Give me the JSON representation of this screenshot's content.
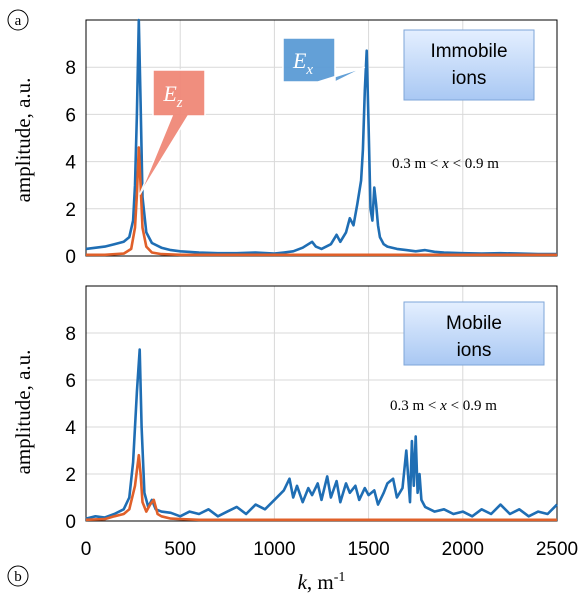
{
  "chart_data": [
    {
      "type": "line",
      "panel": "a",
      "xlabel": "",
      "ylabel": "amplitude, a.u.",
      "xlim": [
        0,
        2500
      ],
      "ylim": [
        0,
        10
      ],
      "yticks": [
        0,
        2,
        4,
        6,
        8
      ],
      "grid": true,
      "legend_box": [
        "Immobile",
        "ions"
      ],
      "range_text": {
        "a": "0.3 m < ",
        "b": "x",
        "c": " < 0.9 m"
      },
      "series": [
        {
          "name": "E_x",
          "color": "#1f6eb4",
          "x": [
            0,
            100,
            150,
            200,
            230,
            250,
            260,
            270,
            280,
            290,
            300,
            320,
            350,
            400,
            450,
            500,
            600,
            700,
            800,
            900,
            1000,
            1050,
            1100,
            1150,
            1200,
            1220,
            1250,
            1300,
            1330,
            1350,
            1380,
            1400,
            1420,
            1440,
            1460,
            1470,
            1480,
            1490,
            1500,
            1510,
            1520,
            1530,
            1540,
            1550,
            1560,
            1580,
            1600,
            1650,
            1700,
            1750,
            1800,
            1850,
            1900,
            2000,
            2100,
            2200,
            2300,
            2400,
            2500
          ],
          "y": [
            0.3,
            0.4,
            0.5,
            0.6,
            0.8,
            1.5,
            3.0,
            6.0,
            10.0,
            6.5,
            2.5,
            1.0,
            0.55,
            0.35,
            0.25,
            0.2,
            0.15,
            0.12,
            0.12,
            0.15,
            0.1,
            0.15,
            0.2,
            0.35,
            0.6,
            0.4,
            0.3,
            0.5,
            0.9,
            0.6,
            1.0,
            1.6,
            1.3,
            2.2,
            3.2,
            4.5,
            7.0,
            8.7,
            5.5,
            2.0,
            1.5,
            2.9,
            2.2,
            1.3,
            0.8,
            0.5,
            0.4,
            0.3,
            0.25,
            0.2,
            0.25,
            0.18,
            0.15,
            0.12,
            0.1,
            0.12,
            0.1,
            0.08,
            0.08
          ]
        },
        {
          "name": "E_z",
          "color": "#e0602a",
          "x": [
            0,
            100,
            200,
            240,
            260,
            270,
            280,
            290,
            300,
            320,
            350,
            400,
            500,
            700,
            1000,
            1500,
            2000,
            2500
          ],
          "y": [
            0.05,
            0.05,
            0.1,
            0.3,
            1.2,
            2.6,
            4.6,
            3.0,
            1.2,
            0.4,
            0.15,
            0.08,
            0.05,
            0.05,
            0.05,
            0.05,
            0.05,
            0.05
          ]
        }
      ],
      "annotations": [
        {
          "text_main": "E",
          "text_sub": "x",
          "color": "#5b9bd5",
          "x": 1480,
          "y": 8.0
        },
        {
          "text_main": "E",
          "text_sub": "z",
          "color": "#f08878",
          "x": 285,
          "y": 2.6
        }
      ]
    },
    {
      "type": "line",
      "panel": "b",
      "xlabel": "k, m-1",
      "ylabel": "amplitude, a.u.",
      "xlim": [
        0,
        2500
      ],
      "ylim": [
        0,
        10
      ],
      "xticks": [
        0,
        500,
        1000,
        1500,
        2000,
        2500
      ],
      "yticks": [
        0,
        2,
        4,
        6,
        8
      ],
      "grid": true,
      "legend_box": [
        "Mobile",
        "ions"
      ],
      "range_text": {
        "a": "0.3 m < ",
        "b": "x",
        "c": " < 0.9 m"
      },
      "series": [
        {
          "name": "E_x",
          "color": "#1f6eb4",
          "x": [
            0,
            50,
            100,
            150,
            200,
            230,
            250,
            270,
            285,
            295,
            310,
            330,
            350,
            370,
            400,
            450,
            500,
            550,
            600,
            650,
            700,
            750,
            800,
            850,
            900,
            950,
            1000,
            1050,
            1080,
            1100,
            1120,
            1150,
            1180,
            1200,
            1230,
            1250,
            1280,
            1300,
            1330,
            1350,
            1380,
            1400,
            1430,
            1450,
            1480,
            1500,
            1530,
            1550,
            1580,
            1600,
            1630,
            1650,
            1680,
            1700,
            1720,
            1730,
            1740,
            1750,
            1760,
            1770,
            1780,
            1800,
            1850,
            1900,
            1950,
            2000,
            2050,
            2100,
            2150,
            2200,
            2250,
            2300,
            2350,
            2400,
            2450,
            2500
          ],
          "y": [
            0.1,
            0.2,
            0.15,
            0.3,
            0.5,
            1.0,
            2.5,
            5.5,
            7.3,
            4.0,
            1.2,
            0.6,
            0.9,
            0.5,
            0.4,
            0.35,
            0.2,
            0.4,
            0.3,
            0.5,
            0.2,
            0.4,
            0.6,
            0.3,
            0.7,
            0.5,
            0.9,
            1.3,
            1.8,
            1.0,
            1.5,
            0.8,
            1.4,
            1.1,
            1.6,
            0.9,
            1.9,
            1.0,
            1.7,
            0.8,
            1.6,
            1.2,
            1.5,
            0.9,
            1.4,
            1.1,
            1.3,
            0.7,
            1.2,
            1.6,
            1.8,
            1.0,
            1.4,
            3.0,
            0.8,
            3.4,
            1.5,
            3.6,
            1.2,
            2.0,
            0.9,
            0.6,
            0.4,
            0.5,
            0.3,
            0.4,
            0.2,
            0.5,
            0.3,
            0.7,
            0.3,
            0.5,
            0.2,
            0.4,
            0.3,
            0.7
          ]
        },
        {
          "name": "E_z",
          "color": "#e0602a",
          "x": [
            0,
            100,
            150,
            200,
            230,
            260,
            280,
            290,
            300,
            320,
            340,
            360,
            380,
            400,
            450,
            500,
            600,
            800,
            1000,
            1500,
            2000,
            2500
          ],
          "y": [
            0.05,
            0.08,
            0.2,
            0.3,
            0.5,
            1.5,
            2.8,
            2.0,
            0.8,
            0.4,
            0.7,
            0.9,
            0.3,
            0.2,
            0.1,
            0.08,
            0.05,
            0.05,
            0.05,
            0.05,
            0.05,
            0.05
          ]
        }
      ]
    }
  ]
}
